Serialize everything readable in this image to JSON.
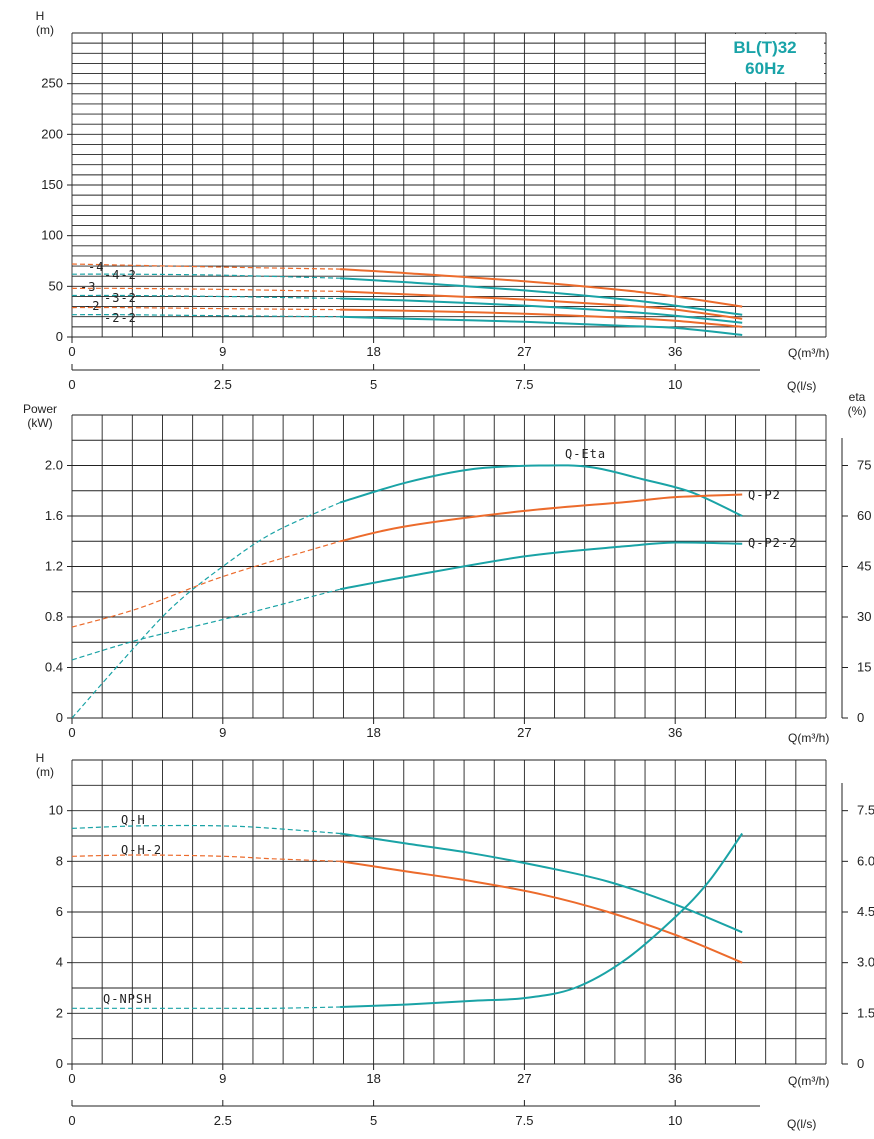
{
  "colors": {
    "teal": "#1aa3a6",
    "orange": "#ec6b2c",
    "grid": "#222222",
    "model": "#19a3a8"
  },
  "model": {
    "line1": "BL(T)32",
    "line2": "60Hz"
  },
  "chart_data": [
    {
      "type": "line",
      "id": "head",
      "ylabel_top": "H",
      "ylabel_unit": "(m)",
      "xlabel": "Q(m³/h)",
      "xlabel2": "Q(l/s)",
      "xlim": [
        0,
        45
      ],
      "ylim": [
        0,
        300
      ],
      "y_ticks": [
        "0",
        "50",
        "100",
        "150",
        "200",
        "250"
      ],
      "x_ticks": [
        "0",
        "9",
        "18",
        "27",
        "36"
      ],
      "x2_ticks": [
        "0",
        "2.5",
        "5",
        "7.5",
        "10"
      ],
      "series": [
        {
          "name": "-4",
          "color": "orange",
          "x": [
            0,
            3,
            9,
            16,
            20,
            27,
            33,
            36,
            40
          ],
          "y": [
            72,
            71,
            69,
            67,
            63,
            55,
            46,
            40,
            30
          ]
        },
        {
          "name": "-4-2",
          "color": "teal",
          "x": [
            0,
            3,
            9,
            16,
            20,
            27,
            33,
            36,
            40
          ],
          "y": [
            62,
            62,
            61,
            58,
            54,
            46,
            37,
            31,
            22
          ]
        },
        {
          "name": "-3",
          "color": "orange",
          "x": [
            0,
            3,
            9,
            16,
            20,
            27,
            33,
            36,
            40
          ],
          "y": [
            48,
            48,
            47,
            45,
            42,
            37,
            31,
            27,
            18
          ]
        },
        {
          "name": "-3-2",
          "color": "teal",
          "x": [
            0,
            3,
            9,
            16,
            20,
            27,
            33,
            36,
            40
          ],
          "y": [
            41,
            41,
            40,
            38,
            36,
            31,
            25,
            21,
            14
          ]
        },
        {
          "name": "-2",
          "color": "orange",
          "x": [
            0,
            3,
            9,
            16,
            20,
            27,
            33,
            36,
            40
          ],
          "y": [
            29,
            29,
            28,
            27,
            26,
            23,
            19,
            16,
            10
          ]
        },
        {
          "name": "-2-2",
          "color": "teal",
          "x": [
            0,
            3,
            9,
            16,
            20,
            27,
            33,
            36,
            40
          ],
          "y": [
            22,
            22,
            21,
            20,
            18,
            15,
            11,
            9,
            2
          ]
        }
      ]
    },
    {
      "type": "line",
      "id": "power",
      "ylabel_top": "Power",
      "ylabel_unit": "(kW)",
      "y2label_top": "eta",
      "y2label_unit": "(%)",
      "xlabel": "Q(m³/h)",
      "xlim": [
        0,
        45
      ],
      "ylim": [
        0,
        2.4
      ],
      "y_ticks": [
        "0",
        "0.4",
        "0.8",
        "1.2",
        "1.6",
        "2.0"
      ],
      "y2lim": [
        0,
        90
      ],
      "y2_ticks": [
        "0",
        "15",
        "30",
        "45",
        "60",
        "75"
      ],
      "x_ticks": [
        "0",
        "9",
        "18",
        "27",
        "36"
      ],
      "series": [
        {
          "name": "Q-Eta",
          "color": "teal",
          "axis": "right",
          "x": [
            0,
            3,
            6,
            9,
            12,
            16,
            20,
            24,
            28,
            31,
            34,
            37,
            40
          ],
          "y": [
            0,
            17,
            33,
            45,
            55,
            64,
            70,
            74,
            75,
            74.5,
            71,
            67,
            60
          ]
        },
        {
          "name": "Q-P2",
          "color": "orange",
          "axis": "left",
          "x": [
            0,
            4,
            9,
            16,
            20,
            27,
            33,
            36,
            40
          ],
          "y": [
            0.72,
            0.87,
            1.12,
            1.4,
            1.52,
            1.64,
            1.71,
            1.75,
            1.77
          ]
        },
        {
          "name": "Q-P2-2",
          "color": "teal",
          "axis": "left",
          "x": [
            0,
            4,
            9,
            16,
            20,
            27,
            33,
            36,
            40
          ],
          "y": [
            0.46,
            0.62,
            0.78,
            1.02,
            1.12,
            1.28,
            1.36,
            1.39,
            1.38
          ]
        }
      ]
    },
    {
      "type": "line",
      "id": "npsh",
      "ylabel_top": "H",
      "ylabel_unit": "(m)",
      "xlabel": "Q(m³/h)",
      "xlabel2": "Q(l/s)",
      "xlim": [
        0,
        45
      ],
      "ylim": [
        0,
        12
      ],
      "y_ticks": [
        "0",
        "2",
        "4",
        "6",
        "8",
        "10"
      ],
      "y2lim": [
        0,
        9
      ],
      "y2_ticks": [
        "0",
        "1.5",
        "3.0",
        "4.5",
        "6.0",
        "7.5"
      ],
      "x_ticks": [
        "0",
        "9",
        "18",
        "27",
        "36"
      ],
      "x2_ticks": [
        "0",
        "2.5",
        "5",
        "7.5",
        "10"
      ],
      "series": [
        {
          "name": "Q-H",
          "color": "teal",
          "x": [
            0,
            4,
            9,
            12,
            16,
            20,
            24,
            28,
            32,
            36,
            40
          ],
          "y": [
            9.3,
            9.4,
            9.4,
            9.3,
            9.1,
            8.7,
            8.3,
            7.8,
            7.2,
            6.3,
            5.2
          ]
        },
        {
          "name": "Q-H-2",
          "color": "orange",
          "x": [
            0,
            4,
            9,
            12,
            16,
            20,
            24,
            28,
            32,
            36,
            40
          ],
          "y": [
            8.2,
            8.25,
            8.2,
            8.1,
            8.0,
            7.6,
            7.2,
            6.7,
            6.0,
            5.1,
            4.0
          ]
        },
        {
          "name": "Q-NPSH",
          "color": "teal",
          "x": [
            0,
            4,
            9,
            12,
            16,
            20,
            24,
            27,
            30,
            33,
            36,
            38,
            40
          ],
          "y": [
            2.2,
            2.2,
            2.2,
            2.2,
            2.25,
            2.35,
            2.5,
            2.6,
            3.0,
            4.1,
            5.8,
            7.2,
            9.1
          ]
        }
      ]
    }
  ]
}
